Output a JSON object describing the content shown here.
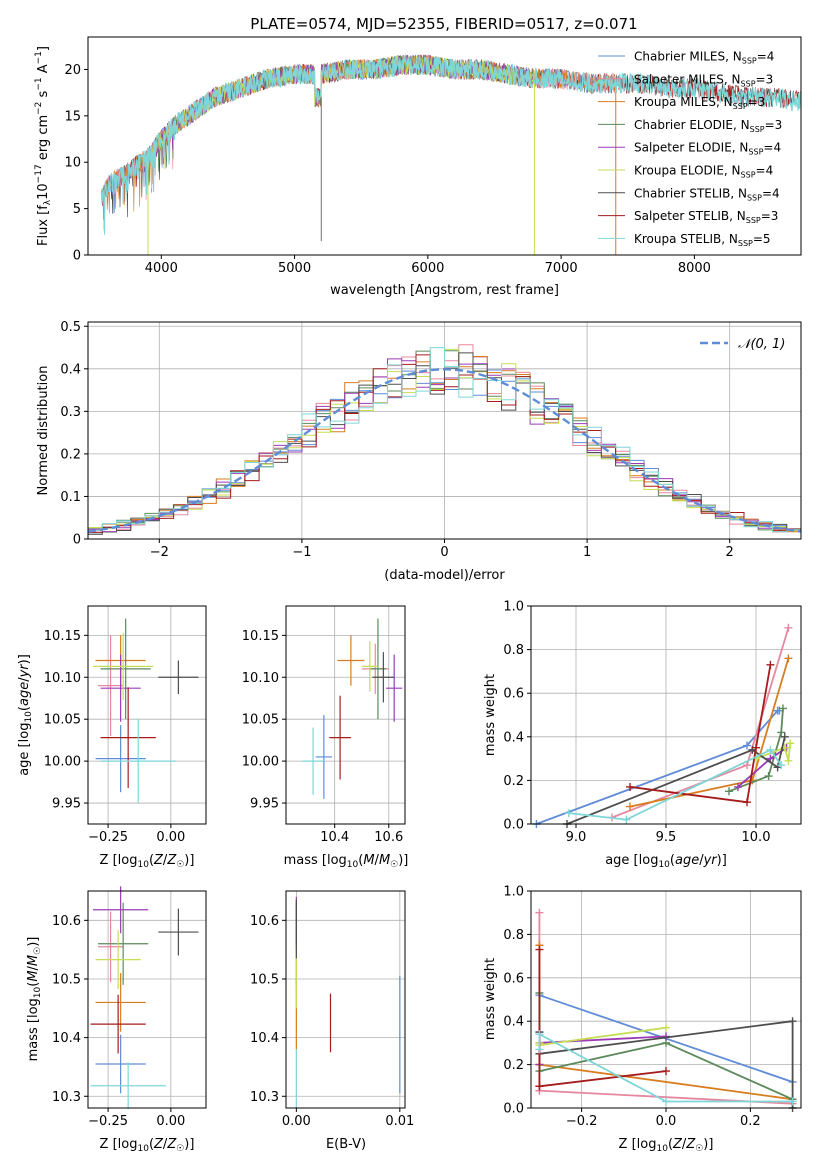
{
  "chart_data": [
    {
      "id": "spectrum",
      "type": "line",
      "title": "PLATE=0574, MJD=52355, FIBERID=0517, z=0.071",
      "xlabel": "wavelength [Angstrom, rest frame]",
      "ylabel": "Flux [f_λ10^-17 erg cm^-2 s^-1 A^-1]",
      "xlim": [
        3450,
        8800
      ],
      "ylim": [
        0,
        23.5
      ],
      "xticks": [
        4000,
        5000,
        6000,
        7000,
        8000
      ],
      "yticks": [
        0,
        5,
        10,
        15,
        20
      ],
      "grid": false,
      "legend_position": "top-right",
      "series": [
        {
          "name": "Chabrier MILES, N_SSP=4",
          "legend_main": "Chabrier MILES, N",
          "legend_sub": "SSP",
          "legend_tail": "=4",
          "color": "#5f8cd7",
          "wmin": 3550,
          "wmax": 7410
        },
        {
          "name": "Salpeter MILES, N_SSP=3",
          "legend_main": "Salpeter MILES, N",
          "legend_sub": "SSP",
          "legend_tail": "=3",
          "color": "#e5889f",
          "wmin": 3550,
          "wmax": 7410
        },
        {
          "name": "Kroupa MILES, N_SSP=3",
          "legend_main": "Kroupa MILES, N",
          "legend_sub": "SSP",
          "legend_tail": "=3",
          "color": "#d87d1f",
          "wmin": 3550,
          "wmax": 7410
        },
        {
          "name": "Chabrier ELODIE, N_SSP=3",
          "legend_main": "Chabrier ELODIE, N",
          "legend_sub": "SSP",
          "legend_tail": "=3",
          "color": "#5c8a5c",
          "wmin": 3900,
          "wmax": 6800
        },
        {
          "name": "Salpeter ELODIE, N_SSP=4",
          "legend_main": "Salpeter ELODIE, N",
          "legend_sub": "SSP",
          "legend_tail": "=4",
          "color": "#9a3bb5",
          "wmin": 3900,
          "wmax": 6800
        },
        {
          "name": "Kroupa ELODIE, N_SSP=4",
          "legend_main": "Kroupa ELODIE, N",
          "legend_sub": "SSP",
          "legend_tail": "=4",
          "color": "#c5de53",
          "wmin": 3900,
          "wmax": 6800
        },
        {
          "name": "Chabrier STELIB, N_SSP=4",
          "legend_main": "Chabrier STELIB, N",
          "legend_sub": "SSP",
          "legend_tail": "=4",
          "color": "#4d4d4d",
          "wmin": 3550,
          "wmax": 8800
        },
        {
          "name": "Salpeter STELIB, N_SSP=3",
          "legend_main": "Salpeter STELIB, N",
          "legend_sub": "SSP",
          "legend_tail": "=3",
          "color": "#a51c1c",
          "wmin": 3550,
          "wmax": 8800
        },
        {
          "name": "Kroupa STELIB, N_SSP=5",
          "legend_main": "Kroupa STELIB, N",
          "legend_sub": "SSP",
          "legend_tail": "=5",
          "color": "#7fd6d9",
          "wmin": 3550,
          "wmax": 8800
        }
      ],
      "envelope": {
        "wavelength": [
          3550,
          3600,
          3700,
          3800,
          3900,
          4000,
          4100,
          4200,
          4300,
          4400,
          4500,
          4600,
          4700,
          4800,
          5000,
          5200,
          5400,
          5600,
          5800,
          6000,
          6200,
          6400,
          6600,
          6800,
          7000,
          7200,
          7400,
          7600,
          7800,
          8000,
          8200,
          8400,
          8600,
          8800
        ],
        "flux": [
          6,
          7.5,
          8.5,
          9.5,
          10.5,
          12.5,
          14,
          15,
          16,
          17,
          17.5,
          18,
          18.5,
          19,
          19.5,
          19.5,
          20,
          20,
          20.5,
          20.5,
          20,
          20,
          19.5,
          19,
          19,
          18.5,
          18.5,
          18.5,
          18,
          18,
          17.5,
          17,
          17,
          16.5
        ]
      }
    },
    {
      "id": "residuals",
      "type": "histogram",
      "xlabel": "(data-model)/error",
      "ylabel": "Normed distribution",
      "xlim": [
        -2.5,
        2.5
      ],
      "ylim": [
        0,
        0.51
      ],
      "xticks": [
        -2,
        -1,
        0,
        1,
        2
      ],
      "yticks": [
        0.0,
        0.1,
        0.2,
        0.3,
        0.4,
        0.5
      ],
      "grid": true,
      "legend_position": "top-right",
      "legend_label": "𝒩(0, 1)",
      "bin_width": 0.1,
      "reference_curve": {
        "name": "𝒩(0, 1)",
        "mu": 0,
        "sigma": 1,
        "color": "#5f8cd7"
      }
    },
    {
      "id": "age-vs-Z",
      "type": "scatter",
      "xlabel": "Z [log10(Z/Z☉)]",
      "ylabel": "age [log10(age/yr)]",
      "xlim": [
        -0.33,
        0.14
      ],
      "ylim": [
        9.925,
        10.185
      ],
      "xticks": [
        -0.25,
        0.0
      ],
      "xtick_labels": [
        "−0.25",
        "0.00"
      ],
      "yticks": [
        9.95,
        10.0,
        10.05,
        10.1,
        10.15
      ],
      "ytick_labels": [
        "9.95",
        "10.00",
        "10.05",
        "10.10",
        "10.15"
      ],
      "grid": true,
      "points": [
        {
          "x": -0.2,
          "y": 10.003,
          "xerr": 0.1,
          "yerr": 0.04,
          "color": "#5f8cd7"
        },
        {
          "x": -0.24,
          "y": 10.09,
          "xerr": 0.05,
          "yerr": 0.06,
          "color": "#e5889f"
        },
        {
          "x": -0.2,
          "y": 10.12,
          "xerr": 0.1,
          "yerr": 0.03,
          "color": "#d87d1f"
        },
        {
          "x": -0.18,
          "y": 10.11,
          "xerr": 0.1,
          "yerr": 0.06,
          "color": "#5c8a5c"
        },
        {
          "x": -0.2,
          "y": 10.087,
          "xerr": 0.08,
          "yerr": 0.04,
          "color": "#9a3bb5"
        },
        {
          "x": -0.19,
          "y": 10.113,
          "xerr": 0.12,
          "yerr": 0.04,
          "color": "#c5de53"
        },
        {
          "x": 0.03,
          "y": 10.1,
          "xerr": 0.08,
          "yerr": 0.02,
          "color": "#4d4d4d"
        },
        {
          "x": -0.17,
          "y": 10.028,
          "xerr": 0.11,
          "yerr": 0.06,
          "color": "#a51c1c"
        },
        {
          "x": -0.13,
          "y": 10.0,
          "xerr": 0.15,
          "yerr": 0.05,
          "color": "#7fd6d9"
        }
      ]
    },
    {
      "id": "age-vs-mass",
      "type": "scatter",
      "xlabel": "mass [log10(M/M☉)]",
      "ylabel": "",
      "xlim": [
        10.22,
        10.66
      ],
      "ylim": [
        9.925,
        10.185
      ],
      "xticks": [
        10.4,
        10.6
      ],
      "xtick_labels": [
        "10.4",
        "10.6"
      ],
      "yticks": [
        9.95,
        10.0,
        10.05,
        10.1,
        10.15
      ],
      "ytick_labels": [
        "9.95",
        "10.00",
        "10.05",
        "10.10",
        "10.15"
      ],
      "grid": true,
      "points": [
        {
          "x": 10.36,
          "y": 10.005,
          "xerr": 0.03,
          "yerr": 0.05,
          "color": "#5f8cd7"
        },
        {
          "x": 10.55,
          "y": 10.11,
          "xerr": 0.05,
          "yerr": 0.03,
          "color": "#e5889f"
        },
        {
          "x": 10.46,
          "y": 10.12,
          "xerr": 0.05,
          "yerr": 0.03,
          "color": "#d87d1f"
        },
        {
          "x": 10.56,
          "y": 10.11,
          "xerr": 0.03,
          "yerr": 0.06,
          "color": "#5c8a5c"
        },
        {
          "x": 10.62,
          "y": 10.087,
          "xerr": 0.03,
          "yerr": 0.04,
          "color": "#9a3bb5"
        },
        {
          "x": 10.53,
          "y": 10.113,
          "xerr": 0.03,
          "yerr": 0.03,
          "color": "#c5de53"
        },
        {
          "x": 10.58,
          "y": 10.1,
          "xerr": 0.04,
          "yerr": 0.03,
          "color": "#4d4d4d"
        },
        {
          "x": 10.42,
          "y": 10.028,
          "xerr": 0.04,
          "yerr": 0.05,
          "color": "#a51c1c"
        },
        {
          "x": 10.32,
          "y": 10.0,
          "xerr": 0.04,
          "yerr": 0.04,
          "color": "#7fd6d9"
        }
      ]
    },
    {
      "id": "massweight-vs-age",
      "type": "line",
      "xlabel": "age [log10(age/yr)]",
      "ylabel": "mass weight",
      "xlim": [
        8.75,
        10.25
      ],
      "ylim": [
        0,
        1.0
      ],
      "xticks": [
        9.0,
        9.5,
        10.0
      ],
      "xtick_labels": [
        "9.0",
        "9.5",
        "10.0"
      ],
      "yticks": [
        0.0,
        0.2,
        0.4,
        0.6,
        0.8,
        1.0
      ],
      "ytick_labels": [
        "0.0",
        "0.2",
        "0.4",
        "0.6",
        "0.8",
        "1.0"
      ],
      "grid": true,
      "series": [
        {
          "color": "#5f8cd7",
          "x": [
            8.78,
            9.95,
            10.12,
            10.13
          ],
          "y": [
            0.0,
            0.36,
            0.52,
            0.52
          ]
        },
        {
          "color": "#e5889f",
          "x": [
            9.2,
            9.95,
            10.18
          ],
          "y": [
            0.03,
            0.27,
            0.9
          ]
        },
        {
          "color": "#d87d1f",
          "x": [
            9.3,
            9.98,
            10.18
          ],
          "y": [
            0.08,
            0.2,
            0.76
          ]
        },
        {
          "color": "#5c8a5c",
          "x": [
            9.85,
            10.07,
            10.14,
            10.15
          ],
          "y": [
            0.15,
            0.22,
            0.42,
            0.53
          ]
        },
        {
          "color": "#9a3bb5",
          "x": [
            9.9,
            10.08,
            10.17
          ],
          "y": [
            0.17,
            0.3,
            0.35
          ]
        },
        {
          "color": "#c5de53",
          "x": [
            10.0,
            10.16,
            10.18,
            10.19
          ],
          "y": [
            0.3,
            0.35,
            0.29,
            0.37
          ]
        },
        {
          "color": "#4d4d4d",
          "x": [
            8.95,
            9.98,
            10.12,
            10.16
          ],
          "y": [
            0.0,
            0.34,
            0.26,
            0.4
          ]
        },
        {
          "color": "#a51c1c",
          "x": [
            9.3,
            9.95,
            10.0,
            10.08
          ],
          "y": [
            0.17,
            0.1,
            0.35,
            0.73
          ]
        },
        {
          "color": "#7fd6d9",
          "x": [
            8.96,
            9.28,
            10.08,
            10.14
          ],
          "y": [
            0.05,
            0.02,
            0.34,
            0.27
          ]
        }
      ]
    },
    {
      "id": "mass-vs-Z",
      "type": "scatter",
      "xlabel": "Z [log10(Z/Z☉)]",
      "ylabel": "mass [log10(M/M☉)]",
      "xlim": [
        -0.33,
        0.14
      ],
      "ylim": [
        10.28,
        10.65
      ],
      "xticks": [
        -0.25,
        0.0
      ],
      "xtick_labels": [
        "−0.25",
        "0.00"
      ],
      "yticks": [
        10.3,
        10.4,
        10.5,
        10.6
      ],
      "ytick_labels": [
        "10.3",
        "10.4",
        "10.5",
        "10.6"
      ],
      "grid": true,
      "points": [
        {
          "x": -0.2,
          "y": 10.355,
          "xerr": 0.1,
          "yerr": 0.05,
          "color": "#5f8cd7"
        },
        {
          "x": -0.24,
          "y": 10.555,
          "xerr": 0.05,
          "yerr": 0.06,
          "color": "#e5889f"
        },
        {
          "x": -0.2,
          "y": 10.46,
          "xerr": 0.1,
          "yerr": 0.05,
          "color": "#d87d1f"
        },
        {
          "x": -0.19,
          "y": 10.56,
          "xerr": 0.1,
          "yerr": 0.07,
          "color": "#5c8a5c"
        },
        {
          "x": -0.2,
          "y": 10.618,
          "xerr": 0.11,
          "yerr": 0.04,
          "color": "#9a3bb5"
        },
        {
          "x": -0.21,
          "y": 10.533,
          "xerr": 0.09,
          "yerr": 0.05,
          "color": "#c5de53"
        },
        {
          "x": 0.03,
          "y": 10.58,
          "xerr": 0.08,
          "yerr": 0.04,
          "color": "#4d4d4d"
        },
        {
          "x": -0.21,
          "y": 10.423,
          "xerr": 0.11,
          "yerr": 0.05,
          "color": "#a51c1c"
        },
        {
          "x": -0.17,
          "y": 10.318,
          "xerr": 0.15,
          "yerr": 0.04,
          "color": "#7fd6d9"
        }
      ]
    },
    {
      "id": "mass-vs-ebv",
      "type": "scatter",
      "xlabel": "E(B-V)",
      "ylabel": "",
      "xlim": [
        -0.001,
        0.0105
      ],
      "ylim": [
        10.28,
        10.65
      ],
      "xticks": [
        0.0,
        0.01
      ],
      "xtick_labels": [
        "0.00",
        "0.01"
      ],
      "yticks": [
        10.3,
        10.4,
        10.5,
        10.6
      ],
      "ytick_labels": [
        "10.3",
        "10.4",
        "10.5",
        "10.6"
      ],
      "grid": true,
      "points": [
        {
          "x": 0.01,
          "y": 10.405,
          "xerr": 0,
          "yerr": 0.1,
          "color": "#5f8cd7"
        },
        {
          "x": 0.0,
          "y": 10.59,
          "xerr": 0,
          "yerr": 0.04,
          "color": "#e5889f"
        },
        {
          "x": 0.0,
          "y": 10.44,
          "xerr": 0,
          "yerr": 0.06,
          "color": "#d87d1f"
        },
        {
          "x": 0.0,
          "y": 10.56,
          "xerr": 0,
          "yerr": 0.07,
          "color": "#5c8a5c"
        },
        {
          "x": 0.0,
          "y": 10.6,
          "xerr": 0,
          "yerr": 0.04,
          "color": "#9a3bb5"
        },
        {
          "x": 0.0,
          "y": 10.5,
          "xerr": 0,
          "yerr": 0.05,
          "color": "#c5de53"
        },
        {
          "x": 0.0,
          "y": 10.585,
          "xerr": 0,
          "yerr": 0.05,
          "color": "#4d4d4d"
        },
        {
          "x": 0.0033,
          "y": 10.425,
          "xerr": 0,
          "yerr": 0.05,
          "color": "#a51c1c"
        },
        {
          "x": 0.0,
          "y": 10.33,
          "xerr": 0,
          "yerr": 0.05,
          "color": "#7fd6d9"
        }
      ]
    },
    {
      "id": "massweight-vs-Z",
      "type": "line",
      "xlabel": "Z [log10(Z/Z☉)]",
      "ylabel": "mass weight",
      "xlim": [
        -0.32,
        0.32
      ],
      "ylim": [
        0,
        1.0
      ],
      "xticks": [
        -0.2,
        0.0,
        0.2
      ],
      "xtick_labels": [
        "−0.2",
        "0.0",
        "0.2"
      ],
      "yticks": [
        0.0,
        0.2,
        0.4,
        0.6,
        0.8,
        1.0
      ],
      "ytick_labels": [
        "0.0",
        "0.2",
        "0.4",
        "0.6",
        "0.8",
        "1.0"
      ],
      "grid": true,
      "series": [
        {
          "color": "#5f8cd7",
          "x": [
            -0.3,
            -0.3,
            0.3
          ],
          "y": [
            0.35,
            0.52,
            0.12
          ]
        },
        {
          "color": "#e5889f",
          "x": [
            -0.3,
            -0.3,
            -0.3,
            0.3
          ],
          "y": [
            0.9,
            0.08,
            0.08,
            0.02
          ]
        },
        {
          "color": "#d87d1f",
          "x": [
            -0.3,
            -0.3,
            -0.3,
            0.3
          ],
          "y": [
            0.75,
            0.2,
            0.2,
            0.04
          ]
        },
        {
          "color": "#5c8a5c",
          "x": [
            -0.3,
            -0.3,
            0.0,
            0.3
          ],
          "y": [
            0.53,
            0.17,
            0.3,
            0.04
          ]
        },
        {
          "color": "#9a3bb5",
          "x": [
            -0.3,
            -0.3,
            0.0
          ],
          "y": [
            0.2,
            0.3,
            0.33
          ]
        },
        {
          "color": "#c5de53",
          "x": [
            -0.3,
            -0.3,
            0.0
          ],
          "y": [
            0.3,
            0.29,
            0.37
          ]
        },
        {
          "color": "#4d4d4d",
          "x": [
            -0.3,
            -0.3,
            0.3,
            0.3
          ],
          "y": [
            0.35,
            0.25,
            0.4,
            0.0
          ]
        },
        {
          "color": "#a51c1c",
          "x": [
            -0.3,
            -0.3,
            -0.3,
            0.0
          ],
          "y": [
            0.73,
            0.1,
            0.1,
            0.17
          ]
        },
        {
          "color": "#7fd6d9",
          "x": [
            -0.3,
            -0.3,
            0.0,
            0.3
          ],
          "y": [
            0.27,
            0.34,
            0.03,
            0.03
          ]
        }
      ]
    }
  ]
}
